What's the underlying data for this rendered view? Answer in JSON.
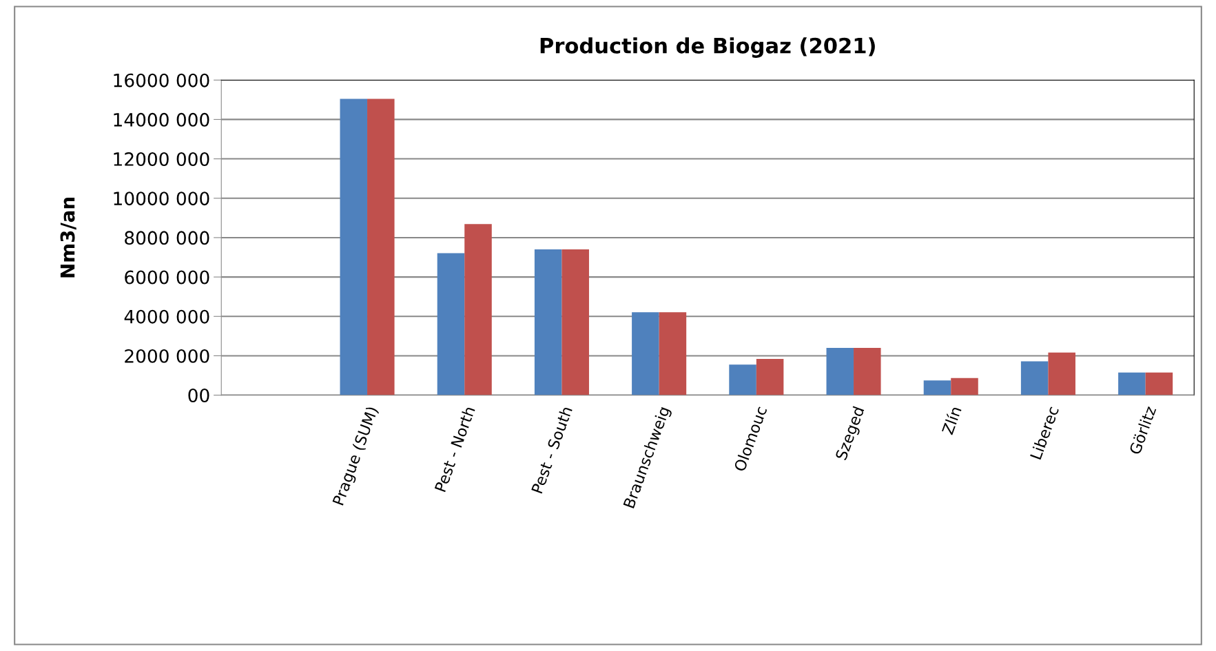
{
  "chart_data": {
    "type": "bar",
    "title": "Production de Biogaz (2021)",
    "ylabel": "Nm3/an",
    "categories": [
      null,
      "Prague (SUM)",
      "Pest - North",
      "Pest - South",
      "Braunschweig",
      "Olomouc",
      "Szeged",
      "Zlín",
      "Liberec",
      "Görlitz"
    ],
    "series": [
      {
        "color": "#4f81bd",
        "values": [
          null,
          15050000,
          7210000,
          7400000,
          4210000,
          1550000,
          2400000,
          750000,
          1720000,
          1150000
        ]
      },
      {
        "color": "#c0504d",
        "values": [
          null,
          15050000,
          8690000,
          7400000,
          4210000,
          1840000,
          2400000,
          870000,
          2160000,
          1150000
        ]
      }
    ],
    "ylim": [
      0,
      16000000
    ],
    "yticks": [
      {
        "value": 0,
        "label": "00"
      },
      {
        "value": 2000000,
        "label": "2000 000"
      },
      {
        "value": 4000000,
        "label": "4000 000"
      },
      {
        "value": 6000000,
        "label": "6000 000"
      },
      {
        "value": 8000000,
        "label": "8000 000"
      },
      {
        "value": 10000000,
        "label": "10000 000"
      },
      {
        "value": 12000000,
        "label": "12000 000"
      },
      {
        "value": 14000000,
        "label": "14000 000"
      },
      {
        "value": 16000000,
        "label": "16000 000"
      }
    ],
    "grid": "y"
  }
}
